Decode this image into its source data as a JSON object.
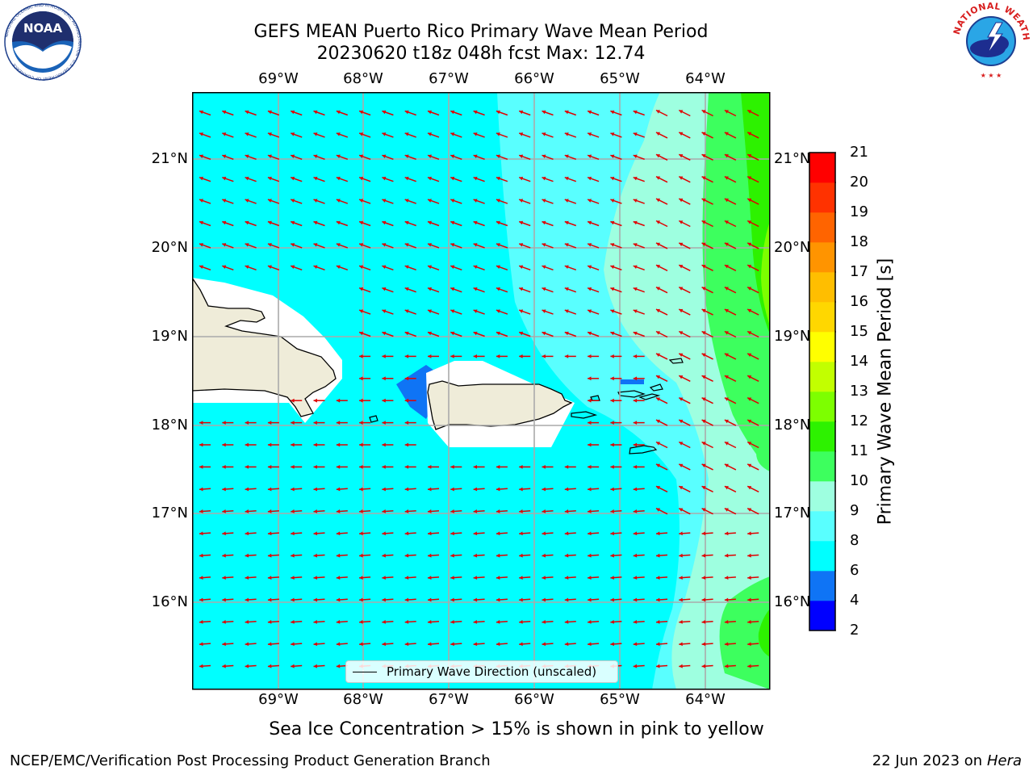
{
  "title_line1": "GEFS MEAN Puerto Rico Primary Wave Mean Period",
  "title_line2": "20230620 t18z 048h fcst   Max: 12.74",
  "lon_ticks": [
    "69°W",
    "68°W",
    "67°W",
    "66°W",
    "65°W",
    "64°W"
  ],
  "lat_ticks": [
    "21°N",
    "20°N",
    "19°N",
    "18°N",
    "17°N",
    "16°N"
  ],
  "legend_label": "Primary Wave Direction (unscaled)",
  "colorbar": {
    "label": "Primary Wave Mean Period [s]",
    "ticks": [
      "2",
      "4",
      "6",
      "8",
      "9",
      "10",
      "11",
      "12",
      "13",
      "14",
      "15",
      "16",
      "17",
      "18",
      "19",
      "20",
      "21"
    ],
    "colors": [
      "#0000ff",
      "#0f74f5",
      "#00ffff",
      "#59ffff",
      "#9effe0",
      "#3dff5e",
      "#2df200",
      "#7dff00",
      "#c2ff00",
      "#ffff00",
      "#ffd700",
      "#ffbe00",
      "#ff9400",
      "#ff6400",
      "#ff3200",
      "#ff0000"
    ]
  },
  "note": "Sea Ice Concentration > 15% is shown in pink to yellow",
  "footer_left": "NCEP/EMC/Verification Post Processing Product Generation Branch",
  "footer_right_date": "22 Jun 2023 on",
  "footer_right_host": "Hera",
  "logos": {
    "noaa": {
      "text": "NOAA",
      "ring": "NATIONAL OCEANIC AND ATMOSPHERIC ADMINISTRATION · U.S. DEPARTMENT OF COMMERCE"
    },
    "nws": {
      "ring": "NATIONAL WEATHER SERVICE"
    }
  },
  "colors": {
    "arrow": "#e00000",
    "land": "#efecd9",
    "grid": "#aaaaaa"
  }
}
